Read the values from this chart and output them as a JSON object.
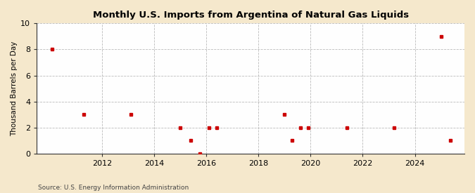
{
  "title": "Monthly U.S. Imports from Argentina of Natural Gas Liquids",
  "ylabel": "Thousand Barrels per Day",
  "source": "Source: U.S. Energy Information Administration",
  "background_color": "#f5e8cc",
  "plot_background_color": "#fefefe",
  "marker_color": "#cc0000",
  "marker": "s",
  "markersize": 3.5,
  "ylim": [
    0,
    10
  ],
  "yticks": [
    0,
    2,
    4,
    6,
    8,
    10
  ],
  "xticks": [
    2012,
    2014,
    2016,
    2018,
    2020,
    2022,
    2024
  ],
  "xlim": [
    2009.5,
    2025.9
  ],
  "data_x": [
    2010.1,
    2011.3,
    2013.1,
    2015.0,
    2015.4,
    2015.75,
    2016.1,
    2016.4,
    2019.0,
    2019.3,
    2019.6,
    2019.9,
    2021.4,
    2023.2,
    2025.0,
    2025.35
  ],
  "data_y": [
    8,
    3,
    3,
    2,
    1,
    0,
    2,
    2,
    3,
    1,
    2,
    2,
    2,
    2,
    9,
    1
  ],
  "title_fontsize": 9.5,
  "ylabel_fontsize": 7.5,
  "tick_fontsize": 8,
  "source_fontsize": 6.5,
  "grid_color": "#bbbbbb",
  "spine_color": "#333333"
}
